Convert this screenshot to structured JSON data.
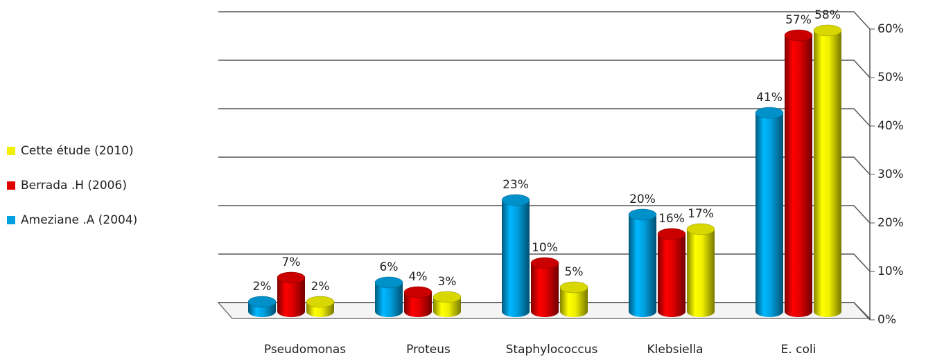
{
  "chart_data": {
    "type": "bar3d",
    "categories": [
      "Pseudomonas",
      "Proteus",
      "Staphylococcus",
      "Klebsiella",
      "E. coli"
    ],
    "series": [
      {
        "name": "Ameziane .A (2004)",
        "color": "#00a0e0",
        "values": [
          2,
          6,
          23,
          20,
          41
        ],
        "value_labels": [
          "2%",
          "6%",
          "23%",
          "20%",
          "41%"
        ]
      },
      {
        "name": "Berrada .H (2006)",
        "color": "#e00000",
        "values": [
          7,
          4,
          10,
          16,
          57
        ],
        "value_labels": [
          "7%",
          "4%",
          "10%",
          "16%",
          "57%"
        ]
      },
      {
        "name": "Cette étude (2010)",
        "color": "#f0f000",
        "values": [
          2,
          3,
          5,
          17,
          58
        ],
        "value_labels": [
          "2%",
          "3%",
          "5%",
          "17%",
          "58%"
        ]
      }
    ],
    "ylim": [
      0,
      60
    ],
    "yticks": [
      {
        "value": 0,
        "label": "0%"
      },
      {
        "value": 10,
        "label": "10%"
      },
      {
        "value": 20,
        "label": "20%"
      },
      {
        "value": 30,
        "label": "30%"
      },
      {
        "value": 40,
        "label": "40%"
      },
      {
        "value": 50,
        "label": "50%"
      },
      {
        "value": 60,
        "label": "60%"
      }
    ],
    "grid": true,
    "legend": "left"
  }
}
